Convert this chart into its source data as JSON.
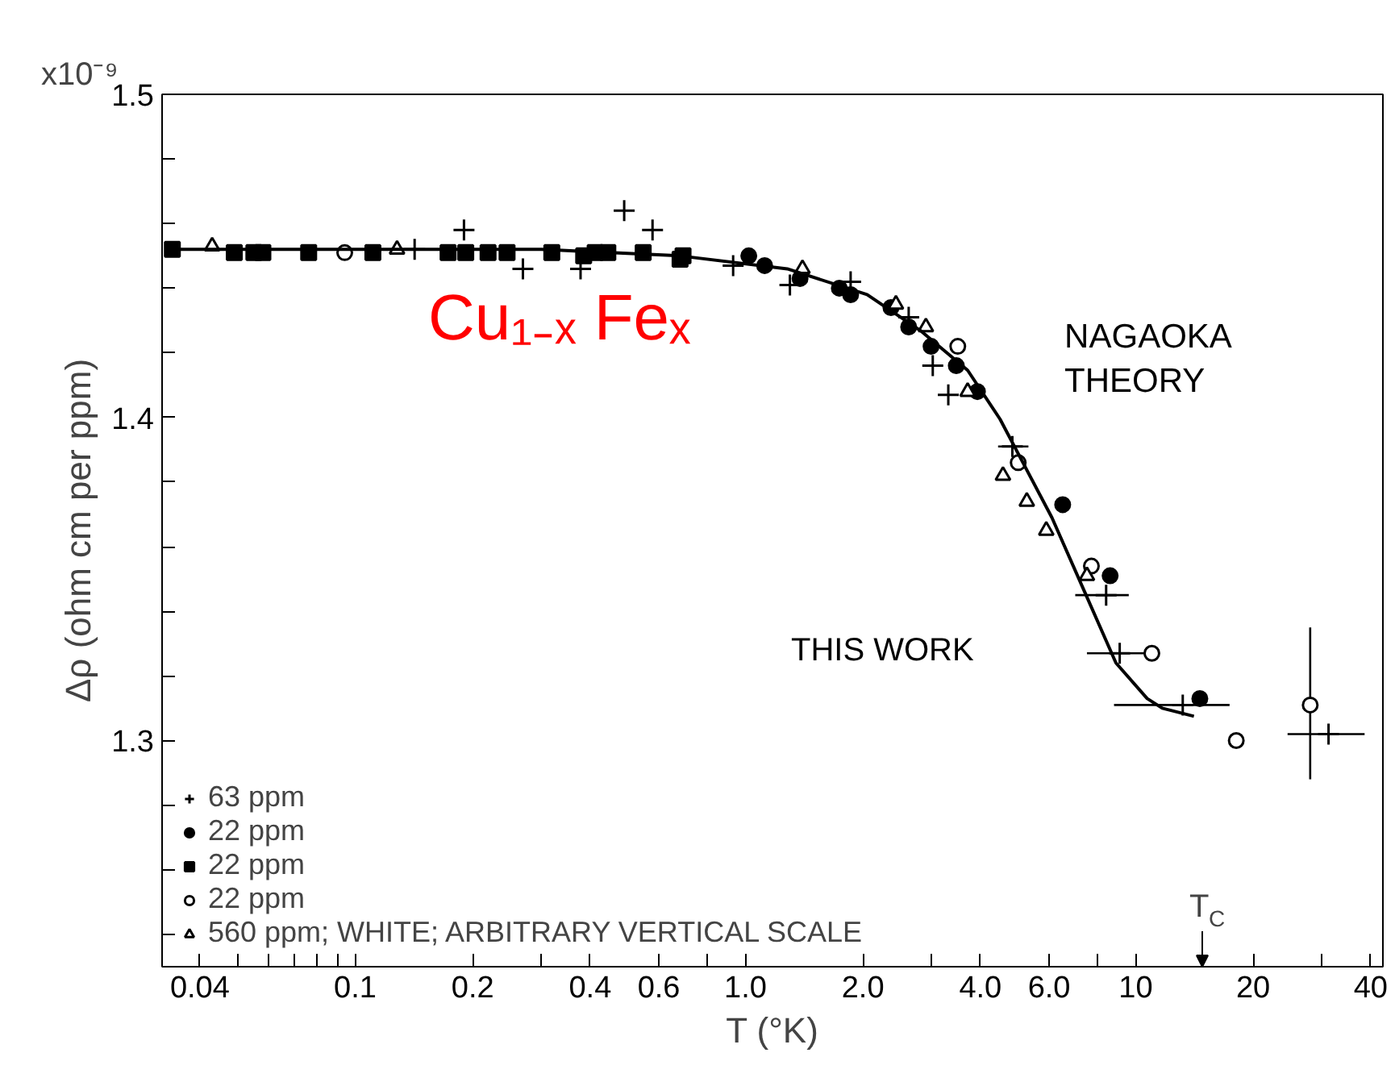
{
  "chart_data": {
    "type": "scatter",
    "xlabel": "T (°K)",
    "ylabel": "Δρ (ohm cm per ppm)",
    "log": "x",
    "xlim": [
      0.032,
      43
    ],
    "ylim": [
      1.23,
      1.5
    ],
    "xticks": [
      {
        "value": 0.04,
        "label": "0.04"
      },
      {
        "value": 0.05,
        "label": null
      },
      {
        "value": 0.06,
        "label": null
      },
      {
        "value": 0.07,
        "label": null
      },
      {
        "value": 0.08,
        "label": null
      },
      {
        "value": 0.09,
        "label": null
      },
      {
        "value": 0.1,
        "label": "0.1"
      },
      {
        "value": 0.2,
        "label": "0.2"
      },
      {
        "value": 0.3,
        "label": null
      },
      {
        "value": 0.4,
        "label": "0.4"
      },
      {
        "value": 0.6,
        "label": "0.6"
      },
      {
        "value": 0.8,
        "label": null
      },
      {
        "value": 1,
        "label": "1.0"
      },
      {
        "value": 2,
        "label": "2.0"
      },
      {
        "value": 3,
        "label": null
      },
      {
        "value": 4,
        "label": "4.0"
      },
      {
        "value": 6,
        "label": "6.0"
      },
      {
        "value": 8,
        "label": null
      },
      {
        "value": 10,
        "label": "10"
      },
      {
        "value": 20,
        "label": "20"
      },
      {
        "value": 30,
        "label": null
      },
      {
        "value": 40,
        "label": "40"
      }
    ],
    "yticks": [
      {
        "value": 1.24,
        "label": null
      },
      {
        "value": 1.26,
        "label": null
      },
      {
        "value": 1.28,
        "label": null
      },
      1.3,
      {
        "value": 1.32,
        "label": null
      },
      {
        "value": 1.34,
        "label": null
      },
      {
        "value": 1.36,
        "label": null
      },
      {
        "value": 1.38,
        "label": null
      },
      1.4,
      {
        "value": 1.42,
        "label": null
      },
      {
        "value": 1.44,
        "label": null
      },
      {
        "value": 1.46,
        "label": null
      },
      {
        "value": 1.48,
        "label": null
      },
      1.5
    ],
    "grid": false,
    "legend": "bottom left",
    "annotations": [
      "x10⁻⁹",
      "Cu₁₋ₓ Feₓ",
      "THIS WORK",
      "T$_{C}$"
    ],
    "series": [
      {
        "name": "63 ppm",
        "marker": "cross",
        "color": "#000000",
        "x": [
          0.142,
          0.19,
          0.269,
          0.378,
          0.489,
          0.578,
          0.93,
          1.3,
          1.86,
          2.62,
          3.02,
          3.31,
          4.83,
          8.4,
          9.1,
          13.2,
          31.2
        ],
        "values": [
          1.452,
          1.458,
          1.446,
          1.446,
          1.464,
          1.458,
          1.447,
          1.441,
          1.442,
          1.431,
          1.416,
          1.407,
          1.391,
          1.345,
          1.327,
          1.311,
          1.302
        ],
        "xerrors": [
          null,
          null,
          null,
          null,
          null,
          null,
          null,
          null,
          null,
          null,
          null,
          null,
          [
            4.44,
            5.31
          ],
          [
            7.0,
            9.6
          ],
          [
            7.5,
            10.8
          ],
          [
            8.8,
            17.4
          ],
          [
            24.5,
            38.6
          ]
        ]
      },
      {
        "name": "22 ppm",
        "marker": "circle",
        "color": "#000000",
        "x": [
          1.02,
          1.12,
          1.38,
          1.74,
          1.86,
          2.36,
          2.62,
          2.99,
          3.47,
          3.93,
          6.5,
          8.6,
          14.6
        ],
        "values": [
          1.45,
          1.447,
          1.443,
          1.44,
          1.438,
          1.434,
          1.428,
          1.422,
          1.416,
          1.408,
          1.373,
          1.351,
          1.313
        ]
      },
      {
        "name": "22 ppm",
        "marker": "square",
        "color": "#000000",
        "x": [
          0.034,
          0.049,
          0.055,
          0.058,
          0.076,
          0.111,
          0.173,
          0.192,
          0.219,
          0.245,
          0.319,
          0.385,
          0.412,
          0.444,
          0.547,
          0.68,
          0.692
        ],
        "values": [
          1.452,
          1.451,
          1.451,
          1.451,
          1.451,
          1.451,
          1.451,
          1.451,
          1.451,
          1.451,
          1.451,
          1.45,
          1.451,
          1.451,
          1.451,
          1.449,
          1.45
        ]
      },
      {
        "name": "22 ppm",
        "marker": "circle",
        "color": "#000000",
        "x": [
          0.094,
          3.5,
          5.0,
          7.7,
          11.0,
          18.1,
          28.0
        ],
        "values": [
          1.451,
          1.422,
          1.386,
          1.354,
          1.327,
          1.3,
          1.311
        ],
        "errors": [
          null,
          null,
          null,
          null,
          null,
          null,
          [
            1.288,
            1.335
          ]
        ]
      },
      {
        "name": "560 ppm; WHITE; ARBITRARY VERTICAL SCALE",
        "marker": "triangle",
        "color": "#000000",
        "x": [
          0.043,
          0.128,
          1.4,
          2.43,
          2.9,
          3.71,
          4.57,
          5.26,
          5.9,
          7.5
        ],
        "values": [
          1.453,
          1.452,
          1.446,
          1.435,
          1.428,
          1.408,
          1.382,
          1.374,
          1.365,
          1.351
        ]
      },
      {
        "name": "NAGAOKA THEORY",
        "type": "line",
        "marker": "none",
        "line_style": "solid",
        "color": "#000000",
        "x": [
          0.034,
          0.3,
          0.68,
          1.28,
          2.05,
          2.8,
          3.71,
          4.49,
          6.1,
          7.4,
          8.9,
          10.7,
          11.7,
          14.1
        ],
        "values": [
          1.452,
          1.452,
          1.45,
          1.446,
          1.438,
          1.427,
          1.4146,
          1.3995,
          1.369,
          1.346,
          1.324,
          1.313,
          1.31,
          1.3075
        ]
      }
    ]
  }
}
